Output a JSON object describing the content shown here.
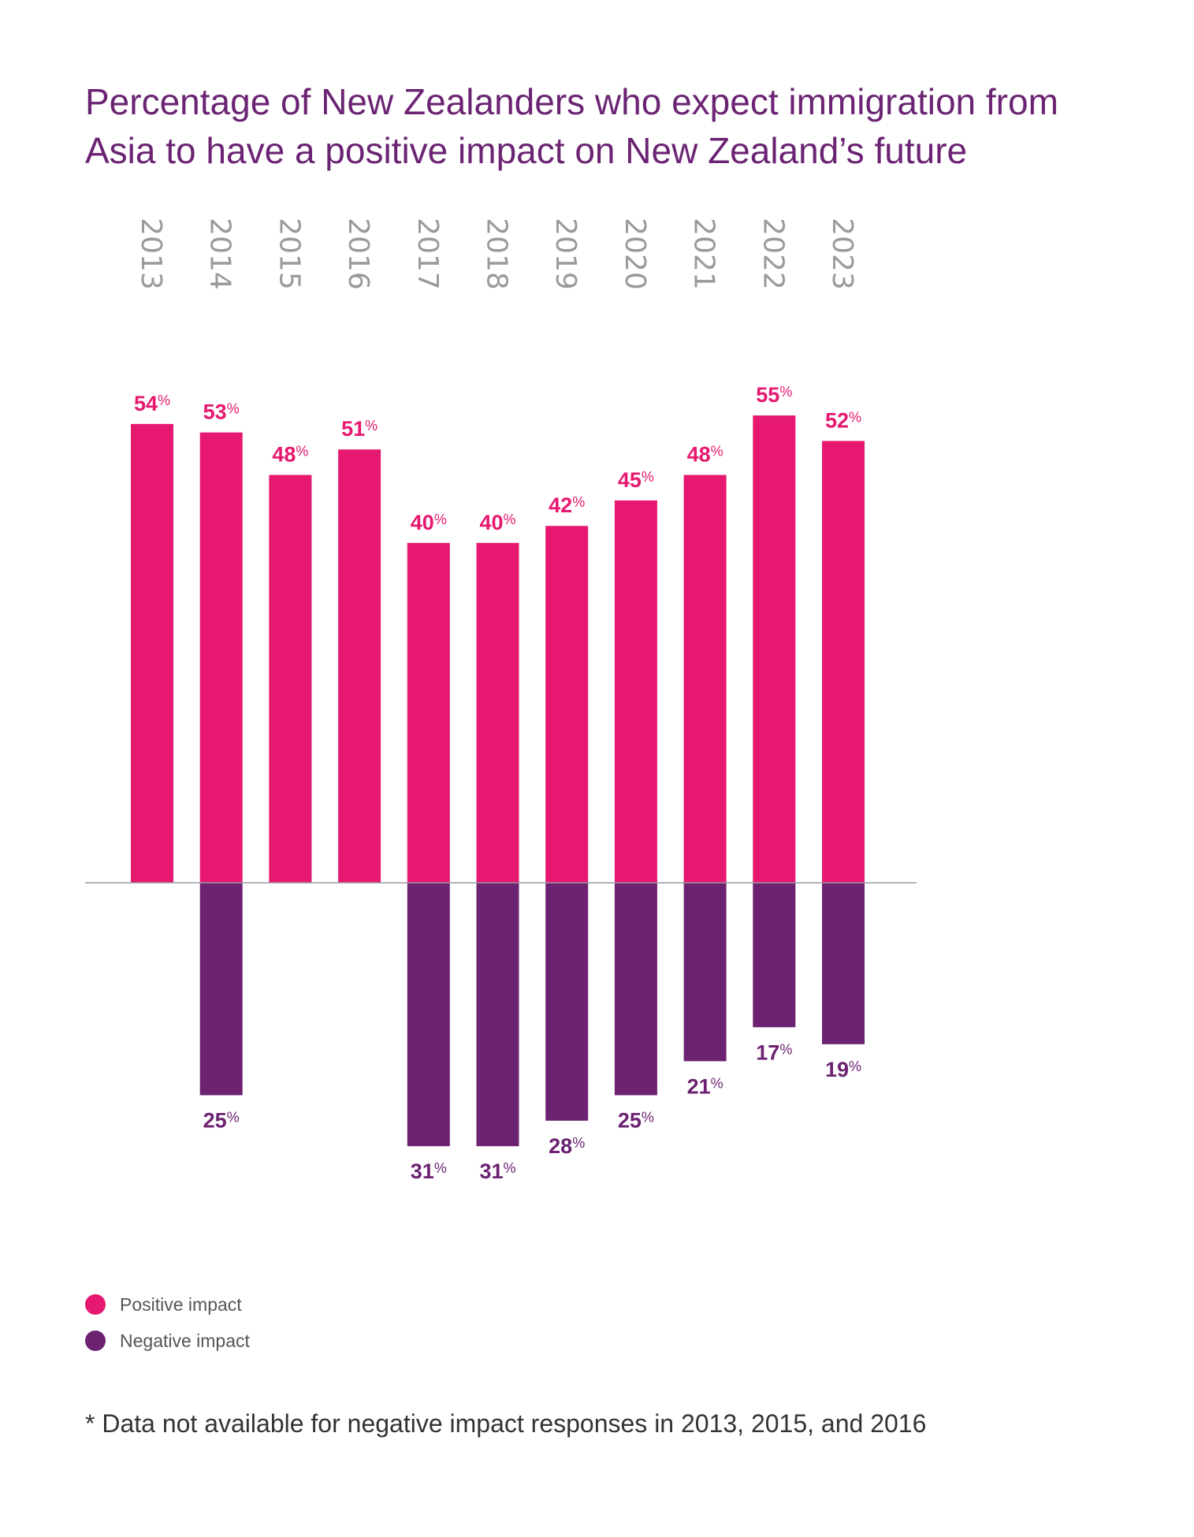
{
  "title_lines": [
    "Percentage of New Zealanders who expect immigration from",
    "Asia to have a positive impact on New Zealand’s future"
  ],
  "colors": {
    "positive": "#e6186f",
    "negative": "#6c2271",
    "title": "#6b2473",
    "axis": "#9a9aa8"
  },
  "chart_data": {
    "type": "bar",
    "title": "Percentage of New Zealanders who expect immigration from Asia to have a positive impact on New Zealand’s future",
    "categories": [
      "2013",
      "2014",
      "2015",
      "2016",
      "2017",
      "2018",
      "2019",
      "2020",
      "2021",
      "2022",
      "2023"
    ],
    "series": [
      {
        "name": "Positive impact",
        "values": [
          54,
          53,
          48,
          51,
          40,
          40,
          42,
          45,
          48,
          55,
          52
        ]
      },
      {
        "name": "Negative impact",
        "values": [
          null,
          25,
          null,
          null,
          31,
          31,
          28,
          25,
          21,
          17,
          19
        ]
      }
    ],
    "value_suffix": "%",
    "negative_series_drawn_below_axis": true,
    "grid": false,
    "legend_position": "bottom-left"
  },
  "legend": [
    {
      "label": "Positive impact",
      "color": "#e6186f"
    },
    {
      "label": "Negative impact",
      "color": "#6c2271"
    }
  ],
  "footnote": "* Data not available for negative impact responses in 2013, 2015, and 2016"
}
